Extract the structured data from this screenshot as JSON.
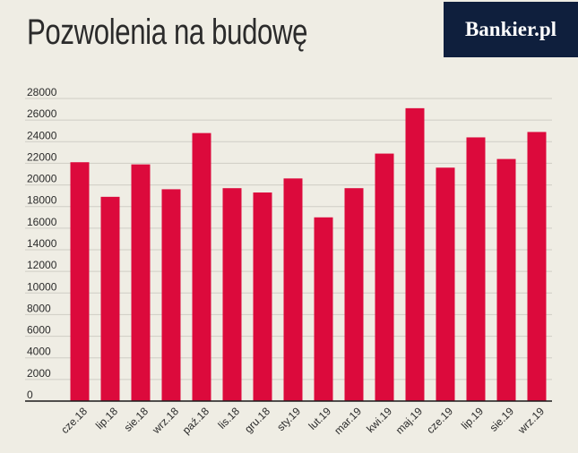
{
  "header": {
    "title": "Pozwolenia na budowę",
    "logo_text": "Bankier.pl"
  },
  "colors": {
    "background": "#efede4",
    "bar": "#dc0a3c",
    "grid": "#cfcdc5",
    "logo_bg": "#0f1f3d",
    "text": "#2b2b2b"
  },
  "chart_data": {
    "type": "bar",
    "title": "Pozwolenia na budowę",
    "xlabel": "",
    "ylabel": "",
    "ylim": [
      0,
      28000
    ],
    "y_ticks": [
      0,
      2000,
      4000,
      6000,
      8000,
      10000,
      12000,
      14000,
      16000,
      18000,
      20000,
      22000,
      24000,
      26000,
      28000
    ],
    "grid": true,
    "categories": [
      "cze.18",
      "lip.18",
      "sie.18",
      "wrz.18",
      "paź.18",
      "lis.18",
      "gru.18",
      "sty.19",
      "lut.19",
      "mar.19",
      "kwi.19",
      "maj.19",
      "cze.19",
      "lip.19",
      "sie.19",
      "wrz.19"
    ],
    "values": [
      22100,
      18900,
      21900,
      19600,
      24800,
      19700,
      19300,
      20600,
      17000,
      19700,
      22900,
      27100,
      21600,
      24400,
      22400,
      24900
    ]
  }
}
